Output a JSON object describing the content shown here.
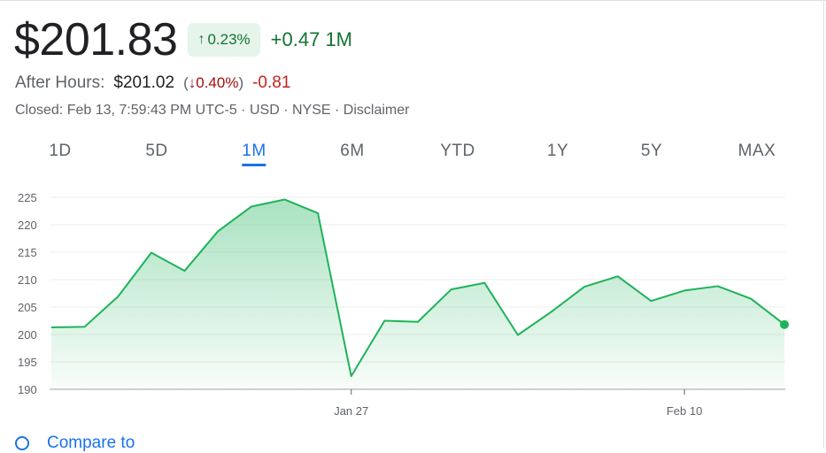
{
  "quote": {
    "price": "$201.83",
    "pct_change": "0.23%",
    "pct_arrow": "↑",
    "change": "+0.47 1M"
  },
  "after_hours": {
    "label": "After Hours:",
    "price": "$201.02",
    "pct_arrow": "↓",
    "pct": "0.40%",
    "change": "-0.81"
  },
  "closed_info": "Closed: Feb 13, 7:59:43 PM UTC-5 · USD · NYSE · Disclaimer",
  "tabs": [
    {
      "label": "1D"
    },
    {
      "label": "5D"
    },
    {
      "label": "1M",
      "active": true
    },
    {
      "label": "6M"
    },
    {
      "label": "YTD"
    },
    {
      "label": "1Y"
    },
    {
      "label": "5Y"
    },
    {
      "label": "MAX"
    }
  ],
  "compare": {
    "label": "Compare to"
  },
  "colors": {
    "up": "#137333",
    "line": "#1eb35a",
    "down": "#c5221f",
    "accent": "#1a73e8"
  },
  "chart_data": {
    "type": "area",
    "yticks": [
      190,
      195,
      200,
      205,
      210,
      215,
      220,
      225
    ],
    "ylim": [
      190,
      225
    ],
    "xticks": [
      {
        "index": 9,
        "label": "Jan 27"
      },
      {
        "index": 19,
        "label": "Feb 10"
      }
    ],
    "series": [
      {
        "values": [
          201.3,
          201.4,
          206.9,
          214.9,
          211.6,
          218.8,
          223.3,
          224.6,
          222.1,
          192.4,
          202.5,
          202.3,
          208.2,
          209.4,
          199.9,
          204.1,
          208.7,
          210.6,
          206.1,
          208.0,
          208.8,
          206.5,
          201.8
        ]
      }
    ]
  }
}
